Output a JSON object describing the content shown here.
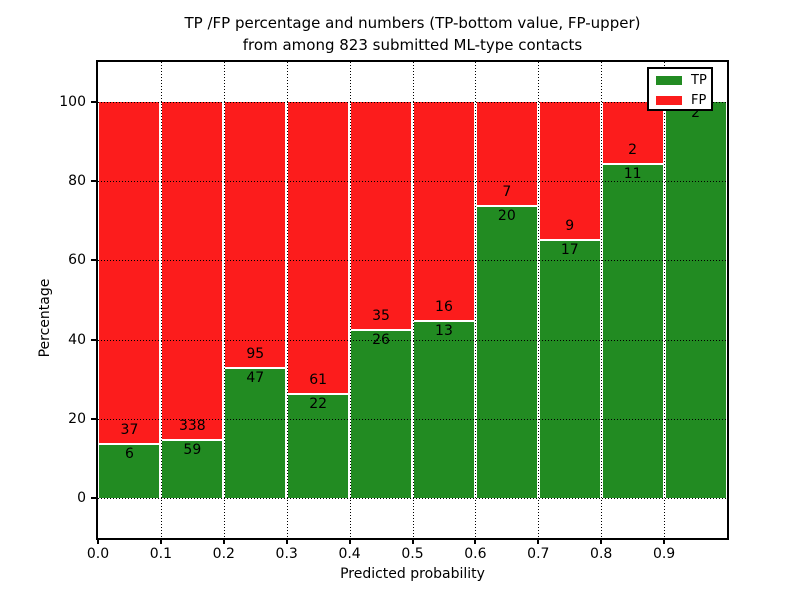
{
  "chart_data": {
    "type": "bar",
    "stacked": true,
    "title_line1": "TP /FP percentage and numbers (TP-bottom value, FP-upper)",
    "title_line2": "from among 823 submitted ML-type contacts",
    "total_submitted": 823,
    "xlabel": "Predicted probability",
    "ylabel": "Percentage",
    "x_tick_labels": [
      "0.0",
      "0.1",
      "0.2",
      "0.3",
      "0.4",
      "0.5",
      "0.6",
      "0.7",
      "0.8",
      "0.9"
    ],
    "y_ticks": [
      0,
      20,
      40,
      60,
      80,
      100
    ],
    "xlim": [
      0.0,
      1.0
    ],
    "ylim": [
      -10,
      110
    ],
    "bin_width": 0.1,
    "grid": {
      "style": "dotted",
      "color": "#000000",
      "drawn_over_bars": true
    },
    "bins": [
      "0.0-0.1",
      "0.1-0.2",
      "0.2-0.3",
      "0.3-0.4",
      "0.4-0.5",
      "0.5-0.6",
      "0.6-0.7",
      "0.7-0.8",
      "0.8-0.9",
      "0.9-1.0"
    ],
    "series": [
      {
        "name": "TP",
        "color": "#228b22",
        "counts": [
          6,
          59,
          47,
          22,
          26,
          13,
          20,
          17,
          11,
          2
        ],
        "percent": [
          13.95,
          14.86,
          33.1,
          26.51,
          42.62,
          44.83,
          74.07,
          65.38,
          84.62,
          100.0
        ]
      },
      {
        "name": "FP",
        "color": "#fc1c1c",
        "counts": [
          37,
          338,
          95,
          61,
          35,
          16,
          7,
          9,
          2,
          0
        ],
        "percent": [
          86.05,
          85.14,
          66.9,
          73.49,
          57.38,
          55.17,
          25.93,
          34.62,
          15.38,
          0.0
        ]
      }
    ],
    "legend": {
      "position": "upper right",
      "entries": [
        {
          "label": "TP",
          "color": "#228b22"
        },
        {
          "label": "FP",
          "color": "#fc1c1c"
        }
      ]
    }
  }
}
